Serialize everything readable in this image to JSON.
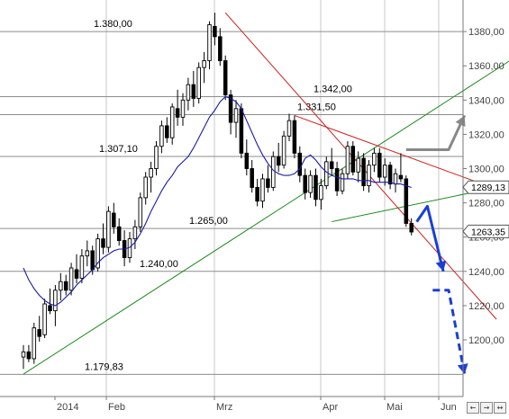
{
  "chart_data": {
    "type": "candlestick",
    "title": "",
    "xlabel": "",
    "ylabel": "",
    "ylim": [
      1160,
      1400
    ],
    "x_tick_labels": [
      "2014",
      "Feb",
      "Mrz",
      "Apr",
      "Mai",
      "Jun"
    ],
    "y_ticks": [
      1200,
      1220,
      1240,
      1260,
      1280,
      1300,
      1320,
      1340,
      1360,
      1380
    ],
    "y_tick_labels": [
      "1200,00",
      "1220,00",
      "1240,00",
      "1260,00",
      "1280,00",
      "1300,00",
      "1320,00",
      "1340,00",
      "1360,00",
      "1380,00"
    ],
    "price_callouts": [
      {
        "label": "1289,13",
        "value": 1289.13
      },
      {
        "label": "1263,35",
        "value": 1263.35
      }
    ],
    "levels": [
      {
        "label": "1.380,00",
        "value": 1380.0
      },
      {
        "label": "1.342,00",
        "value": 1342.0
      },
      {
        "label": "1.331,50",
        "value": 1331.5
      },
      {
        "label": "1.307,10",
        "value": 1307.1
      },
      {
        "label": "1.265,00",
        "value": 1265.0
      },
      {
        "label": "1.240,00",
        "value": 1240.0
      },
      {
        "label": "1.179,83",
        "value": 1179.83
      }
    ],
    "moving_average": {
      "color": "#1a1aa8",
      "values": [
        1242,
        1235,
        1230,
        1226,
        1223,
        1221,
        1220,
        1222,
        1225,
        1228,
        1232,
        1235,
        1238,
        1241,
        1245,
        1248,
        1250,
        1252,
        1253,
        1253,
        1254,
        1257,
        1262,
        1268,
        1275,
        1281,
        1287,
        1292,
        1296,
        1301,
        1304,
        1307,
        1312,
        1318,
        1324,
        1330,
        1334,
        1339,
        1342,
        1341,
        1339,
        1335,
        1328,
        1321,
        1314,
        1308,
        1303,
        1299,
        1297,
        1296,
        1296,
        1297,
        1300,
        1306,
        1308,
        1305,
        1301,
        1298,
        1296,
        1295,
        1294,
        1294,
        1294,
        1293,
        1293,
        1293,
        1292,
        1292,
        1292,
        1292,
        1291,
        1291,
        1290,
        1289
      ]
    },
    "candles": [
      {
        "o": 1190,
        "h": 1197,
        "l": 1183,
        "c": 1193
      },
      {
        "o": 1193,
        "h": 1197,
        "l": 1187,
        "c": 1189
      },
      {
        "o": 1189,
        "h": 1210,
        "l": 1186,
        "c": 1207
      },
      {
        "o": 1206,
        "h": 1214,
        "l": 1199,
        "c": 1202
      },
      {
        "o": 1203,
        "h": 1224,
        "l": 1201,
        "c": 1221
      },
      {
        "o": 1220,
        "h": 1230,
        "l": 1215,
        "c": 1217
      },
      {
        "o": 1217,
        "h": 1232,
        "l": 1208,
        "c": 1229
      },
      {
        "o": 1229,
        "h": 1239,
        "l": 1223,
        "c": 1234
      },
      {
        "o": 1234,
        "h": 1238,
        "l": 1226,
        "c": 1229
      },
      {
        "o": 1229,
        "h": 1245,
        "l": 1226,
        "c": 1242
      },
      {
        "o": 1241,
        "h": 1250,
        "l": 1233,
        "c": 1236
      },
      {
        "o": 1236,
        "h": 1253,
        "l": 1233,
        "c": 1249
      },
      {
        "o": 1249,
        "h": 1258,
        "l": 1243,
        "c": 1252
      },
      {
        "o": 1252,
        "h": 1255,
        "l": 1238,
        "c": 1241
      },
      {
        "o": 1242,
        "h": 1262,
        "l": 1240,
        "c": 1259
      },
      {
        "o": 1259,
        "h": 1268,
        "l": 1250,
        "c": 1254
      },
      {
        "o": 1254,
        "h": 1278,
        "l": 1251,
        "c": 1275
      },
      {
        "o": 1274,
        "h": 1280,
        "l": 1262,
        "c": 1266
      },
      {
        "o": 1266,
        "h": 1271,
        "l": 1255,
        "c": 1258
      },
      {
        "o": 1258,
        "h": 1264,
        "l": 1243,
        "c": 1248
      },
      {
        "o": 1248,
        "h": 1263,
        "l": 1245,
        "c": 1259
      },
      {
        "o": 1259,
        "h": 1270,
        "l": 1253,
        "c": 1266
      },
      {
        "o": 1266,
        "h": 1286,
        "l": 1263,
        "c": 1283
      },
      {
        "o": 1283,
        "h": 1298,
        "l": 1279,
        "c": 1295
      },
      {
        "o": 1295,
        "h": 1304,
        "l": 1286,
        "c": 1300
      },
      {
        "o": 1300,
        "h": 1316,
        "l": 1296,
        "c": 1313
      },
      {
        "o": 1313,
        "h": 1328,
        "l": 1309,
        "c": 1325
      },
      {
        "o": 1325,
        "h": 1330,
        "l": 1315,
        "c": 1318
      },
      {
        "o": 1318,
        "h": 1338,
        "l": 1314,
        "c": 1336
      },
      {
        "o": 1335,
        "h": 1346,
        "l": 1325,
        "c": 1330
      },
      {
        "o": 1330,
        "h": 1344,
        "l": 1325,
        "c": 1340
      },
      {
        "o": 1340,
        "h": 1353,
        "l": 1334,
        "c": 1349
      },
      {
        "o": 1349,
        "h": 1357,
        "l": 1336,
        "c": 1341
      },
      {
        "o": 1341,
        "h": 1362,
        "l": 1338,
        "c": 1359
      },
      {
        "o": 1359,
        "h": 1368,
        "l": 1350,
        "c": 1363
      },
      {
        "o": 1363,
        "h": 1386,
        "l": 1358,
        "c": 1384
      },
      {
        "o": 1383,
        "h": 1391,
        "l": 1372,
        "c": 1377
      },
      {
        "o": 1377,
        "h": 1382,
        "l": 1360,
        "c": 1363
      },
      {
        "o": 1363,
        "h": 1366,
        "l": 1340,
        "c": 1343
      },
      {
        "o": 1343,
        "h": 1346,
        "l": 1320,
        "c": 1327
      },
      {
        "o": 1327,
        "h": 1340,
        "l": 1318,
        "c": 1335
      },
      {
        "o": 1335,
        "h": 1338,
        "l": 1306,
        "c": 1309
      },
      {
        "o": 1309,
        "h": 1317,
        "l": 1296,
        "c": 1300
      },
      {
        "o": 1300,
        "h": 1305,
        "l": 1286,
        "c": 1289
      },
      {
        "o": 1289,
        "h": 1294,
        "l": 1278,
        "c": 1281
      },
      {
        "o": 1281,
        "h": 1297,
        "l": 1277,
        "c": 1294
      },
      {
        "o": 1294,
        "h": 1302,
        "l": 1286,
        "c": 1289
      },
      {
        "o": 1289,
        "h": 1310,
        "l": 1287,
        "c": 1307
      },
      {
        "o": 1307,
        "h": 1315,
        "l": 1298,
        "c": 1302
      },
      {
        "o": 1302,
        "h": 1322,
        "l": 1300,
        "c": 1319
      },
      {
        "o": 1319,
        "h": 1332,
        "l": 1316,
        "c": 1328
      },
      {
        "o": 1328,
        "h": 1331,
        "l": 1306,
        "c": 1309
      },
      {
        "o": 1309,
        "h": 1313,
        "l": 1292,
        "c": 1296
      },
      {
        "o": 1296,
        "h": 1300,
        "l": 1282,
        "c": 1286
      },
      {
        "o": 1286,
        "h": 1299,
        "l": 1283,
        "c": 1296
      },
      {
        "o": 1296,
        "h": 1300,
        "l": 1278,
        "c": 1282
      },
      {
        "o": 1282,
        "h": 1294,
        "l": 1276,
        "c": 1290
      },
      {
        "o": 1290,
        "h": 1307,
        "l": 1288,
        "c": 1304
      },
      {
        "o": 1304,
        "h": 1312,
        "l": 1296,
        "c": 1300
      },
      {
        "o": 1300,
        "h": 1304,
        "l": 1284,
        "c": 1287
      },
      {
        "o": 1287,
        "h": 1300,
        "l": 1285,
        "c": 1297
      },
      {
        "o": 1297,
        "h": 1316,
        "l": 1294,
        "c": 1313
      },
      {
        "o": 1313,
        "h": 1316,
        "l": 1296,
        "c": 1298
      },
      {
        "o": 1298,
        "h": 1310,
        "l": 1292,
        "c": 1306
      },
      {
        "o": 1306,
        "h": 1309,
        "l": 1287,
        "c": 1290
      },
      {
        "o": 1290,
        "h": 1305,
        "l": 1286,
        "c": 1302
      },
      {
        "o": 1302,
        "h": 1312,
        "l": 1298,
        "c": 1309
      },
      {
        "o": 1309,
        "h": 1312,
        "l": 1292,
        "c": 1295
      },
      {
        "o": 1295,
        "h": 1306,
        "l": 1290,
        "c": 1302
      },
      {
        "o": 1302,
        "h": 1304,
        "l": 1288,
        "c": 1291
      },
      {
        "o": 1291,
        "h": 1300,
        "l": 1286,
        "c": 1297
      },
      {
        "o": 1296,
        "h": 1309,
        "l": 1292,
        "c": 1294
      },
      {
        "o": 1294,
        "h": 1296,
        "l": 1266,
        "c": 1268
      },
      {
        "o": 1268,
        "h": 1271,
        "l": 1261,
        "c": 1263
      }
    ],
    "trendlines": [
      {
        "name": "green-uptrend",
        "color": "#1f8a1f",
        "points": [
          [
            0,
            1180
          ],
          [
            120,
            1420
          ]
        ]
      },
      {
        "name": "green-triangle-base",
        "color": "#1f8a1f",
        "points": [
          [
            58,
            1269
          ],
          [
            89,
            1289
          ]
        ]
      },
      {
        "name": "red-main-downtrend",
        "color": "#cc1f1f",
        "points": [
          [
            38,
            1391
          ],
          [
            89,
            1212
          ]
        ]
      },
      {
        "name": "red-triangle-top",
        "color": "#cc1f1f",
        "points": [
          [
            51,
            1331
          ],
          [
            89,
            1288
          ]
        ]
      }
    ],
    "scenario_arrows": [
      {
        "color": "#888888",
        "points": [
          [
            72,
            1311
          ],
          [
            80,
            1311
          ],
          [
            83,
            1331
          ]
        ]
      },
      {
        "color": "#1a3fd6",
        "points": [
          [
            74,
            1269
          ],
          [
            76,
            1278
          ],
          [
            79,
            1240
          ]
        ]
      },
      {
        "color": "#1a3fd6",
        "dashed": true,
        "points": [
          [
            77,
            1229
          ],
          [
            80,
            1229
          ],
          [
            83,
            1180
          ]
        ]
      }
    ]
  },
  "nav_buttons": [
    "←",
    "→",
    "↔"
  ]
}
